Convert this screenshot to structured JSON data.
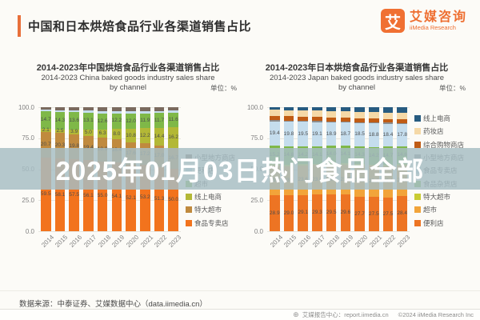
{
  "page": {
    "header": {
      "title": "中国和日本烘焙食品行业各渠道销售占比"
    },
    "logo": {
      "mark": "艾",
      "name_zh": "艾媒咨询",
      "name_en": "iiMedia Research",
      "color": "#ee6f31"
    },
    "watermark": {
      "text": "2025年01月03日热门食品全部",
      "text_color": "#ffffff",
      "band_color": "rgba(167,189,195,0.84)"
    },
    "footer": {
      "source": "数据来源：中泰证券、艾媒数据中心（data.iimedia.cn）",
      "report_center": "艾媒报告中心：report.iimedia.cn",
      "copyright": "©2024 iiMedia Research Inc"
    }
  },
  "chart_data": [
    {
      "type": "bar",
      "stacked": true,
      "title_zh": "2014-2023年中国烘焙食品行业各渠道销售占比",
      "title_en_line1": "2014-2023 China baked goods industry sales share",
      "title_en_line2": "by channel",
      "unit_label": "单位：%",
      "categories": [
        "2014",
        "2015",
        "2016",
        "2017",
        "2018",
        "2019",
        "2020",
        "2021",
        "2022",
        "2023"
      ],
      "ylim": [
        0,
        100
      ],
      "yticks": [
        100,
        75,
        50,
        25,
        0
      ],
      "grid": true,
      "legend_position": "right",
      "series_bottom_to_top": [
        {
          "name": "食品专卖店",
          "color": "#f2731d",
          "show_labels": true,
          "values": [
            59.5,
            58.1,
            57.5,
            56.1,
            55.0,
            54.1,
            52.1,
            53.2,
            51.3,
            50.0
          ]
        },
        {
          "name": "特大超市",
          "color": "#c08a3e",
          "show_labels": true,
          "values": [
            20.7,
            20.3,
            19.8,
            19.4,
            18.9,
            18.4,
            17.6,
            17.2,
            17.0,
            16.7
          ]
        },
        {
          "name": "线上电商",
          "color": "#b3b836",
          "show_labels": true,
          "values": [
            2.1,
            2.5,
            3.9,
            5.0,
            6.3,
            8.0,
            10.8,
            12.2,
            14.4,
            16.2
          ]
        },
        {
          "name": "超市",
          "color": "#7fb848",
          "show_labels": true,
          "values": [
            14.7,
            14.3,
            13.6,
            13.1,
            12.6,
            12.2,
            12.0,
            11.9,
            11.7,
            11.6
          ]
        },
        {
          "name": "便利店",
          "color": "#c5dded",
          "show_labels": false,
          "values": [
            1.2,
            1.4,
            1.5,
            1.6,
            1.7,
            1.8,
            1.8,
            1.8,
            1.8,
            1.8
          ]
        },
        {
          "name": "小型地方商店",
          "color": "#7a6a5e",
          "show_labels": false,
          "values": [
            1.8,
            2.4,
            2.6,
            2.8,
            3.0,
            3.1,
            3.2,
            3.0,
            2.9,
            2.8
          ]
        }
      ]
    },
    {
      "type": "bar",
      "stacked": true,
      "title_zh": "2014-2023年日本烘焙食品行业各渠道销售占比",
      "title_en_line1": "2014-2023 Japan baked goods industry sales share",
      "title_en_line2": "by channel",
      "unit_label": "单位：%",
      "categories": [
        "2014",
        "2015",
        "2016",
        "2017",
        "2018",
        "2019",
        "2020",
        "2021",
        "2022",
        "2023"
      ],
      "ylim": [
        0,
        100
      ],
      "yticks": [
        100,
        75,
        50,
        25,
        0
      ],
      "grid": true,
      "legend_position": "right",
      "series_bottom_to_top": [
        {
          "name": "便利店",
          "color": "#ed7423",
          "show_labels": true,
          "values": [
            28.9,
            29.0,
            29.1,
            29.3,
            29.5,
            29.6,
            27.7,
            27.5,
            27.5,
            28.4
          ]
        },
        {
          "name": "超市",
          "color": "#f2a43a",
          "show_labels": true,
          "values": [
            23.8,
            23.4,
            23.6,
            23.8,
            23.7,
            23.7,
            25.8,
            25.3,
            25.1,
            24.9
          ]
        },
        {
          "name": "特大超市",
          "color": "#c9cc33",
          "show_labels": false,
          "values": [
            1.2,
            1.2,
            1.2,
            1.2,
            1.2,
            1.2,
            1.2,
            1.2,
            1.2,
            1.2
          ]
        },
        {
          "name": "食品杂货店",
          "color": "#7fb848",
          "show_labels": true,
          "values": [
            15.2,
            14.8,
            14.2,
            14.1,
            14.0,
            14.1,
            14.3,
            14.2,
            14.7,
            14.6
          ]
        },
        {
          "name": "食品专卖店",
          "color": "#c5dded",
          "show_labels": true,
          "values": [
            19.4,
            19.8,
            19.5,
            19.1,
            18.9,
            18.7,
            18.5,
            18.8,
            18.4,
            17.8
          ]
        },
        {
          "name": "小型地方商店",
          "color": "#8c8c8c",
          "show_labels": false,
          "values": [
            1.0,
            1.0,
            1.0,
            1.0,
            1.0,
            1.0,
            1.0,
            1.0,
            1.0,
            1.0
          ]
        },
        {
          "name": "综合购物商店",
          "color": "#c05c15",
          "show_labels": false,
          "values": [
            3.4,
            3.4,
            3.3,
            3.3,
            3.2,
            3.2,
            3.1,
            3.1,
            3.0,
            3.0
          ]
        },
        {
          "name": "药妆店",
          "color": "#f5d9a7",
          "show_labels": false,
          "values": [
            5.0,
            5.0,
            5.0,
            5.0,
            5.0,
            5.0,
            5.1,
            5.1,
            5.1,
            5.1
          ]
        },
        {
          "name": "线上电商",
          "color": "#275b80",
          "show_labels": false,
          "values": [
            2.1,
            2.3,
            2.5,
            2.8,
            3.0,
            3.3,
            3.8,
            4.0,
            4.3,
            4.6
          ]
        }
      ]
    }
  ]
}
